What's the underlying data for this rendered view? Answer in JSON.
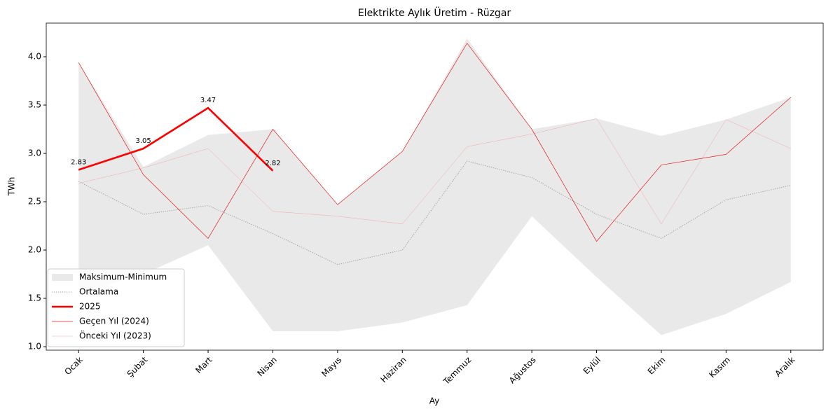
{
  "chart_data": {
    "type": "line",
    "title": "Elektrikte Aylık Üretim - Rüzgar",
    "xlabel": "Ay",
    "ylabel": "TWh",
    "categories": [
      "Ocak",
      "Şubat",
      "Mart",
      "Nisan",
      "Mayıs",
      "Haziran",
      "Temmuz",
      "Ağustos",
      "Eylül",
      "Ekim",
      "Kasım",
      "Aralık"
    ],
    "band": {
      "name": "Maksimum-Minimum",
      "color": "#d3d3d3",
      "max": [
        3.94,
        2.86,
        3.19,
        3.25,
        2.47,
        3.02,
        4.19,
        3.25,
        3.36,
        3.18,
        3.35,
        3.58
      ],
      "min": [
        1.55,
        1.75,
        2.05,
        1.16,
        1.16,
        1.25,
        1.43,
        2.35,
        1.72,
        1.12,
        1.34,
        1.67
      ]
    },
    "series": [
      {
        "name": "Ortalama",
        "color": "#999999",
        "linestyle": "dotted",
        "values": [
          2.71,
          2.37,
          2.46,
          2.17,
          1.85,
          2.0,
          2.92,
          2.75,
          2.37,
          2.12,
          2.52,
          2.67
        ]
      },
      {
        "name": "2025",
        "color": "#ff0000",
        "linestyle": "solid",
        "data_labels": true,
        "values": [
          2.83,
          3.05,
          3.47,
          2.82,
          null,
          null,
          null,
          null,
          null,
          null,
          null,
          null
        ]
      },
      {
        "name": "Geçen Yıl (2024)",
        "color": "#e31a1c",
        "linestyle": "solid",
        "values": [
          3.94,
          2.78,
          2.12,
          3.25,
          2.47,
          3.02,
          4.14,
          3.25,
          2.09,
          2.88,
          2.99,
          3.58
        ]
      },
      {
        "name": "Önceki Yıl (2023)",
        "color": "#f4a6a6",
        "linestyle": "solid",
        "values": [
          2.69,
          2.85,
          3.05,
          2.4,
          2.35,
          2.27,
          3.07,
          3.2,
          3.36,
          2.27,
          3.35,
          3.05
        ]
      }
    ],
    "ylim": [
      0.964,
      4.348
    ],
    "yticks": [
      {
        "value": 1,
        "label": "1.0"
      },
      1.5,
      {
        "value": 2,
        "label": "2.0"
      },
      2.5,
      {
        "value": 3,
        "label": "3.0"
      },
      3.5,
      {
        "value": 4,
        "label": "4.0"
      }
    ],
    "grid": false,
    "legend": "lower left"
  }
}
